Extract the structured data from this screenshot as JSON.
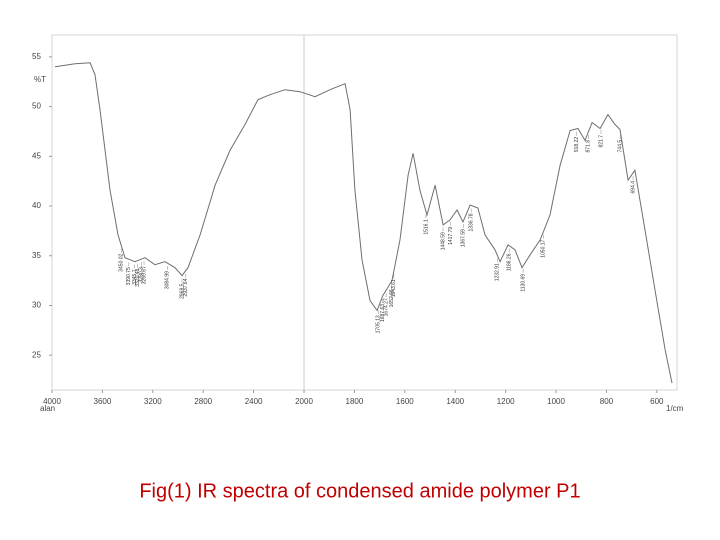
{
  "chart_data": {
    "type": "line",
    "caption": "Fig(1) IR spectra of condensed amide polymer P1",
    "ylabel": "%T",
    "xlabel": "1/cm",
    "x_note": "alan",
    "x_break": 2000,
    "xlim": [
      4000,
      520
    ],
    "ylim": [
      21.5,
      57.2
    ],
    "xticks": [
      4000,
      3600,
      3200,
      2800,
      2400,
      2000,
      1800,
      1600,
      1400,
      1200,
      1000,
      800,
      600
    ],
    "yticks": [
      25,
      30,
      35,
      40,
      45,
      50,
      55
    ],
    "series": [
      {
        "name": "P1",
        "color": "#6e6e6e",
        "x": [
          3976,
          3817,
          3698,
          3659,
          3619,
          3540,
          3476,
          3421,
          3341,
          3262,
          3183,
          3103,
          3024,
          2968,
          2921,
          2825,
          2706,
          2587,
          2468,
          2365,
          2270,
          2151,
          2032,
          1956,
          1897,
          1837,
          1817,
          1798,
          1770,
          1738,
          1710,
          1687,
          1651,
          1619,
          1587,
          1567,
          1540,
          1512,
          1480,
          1448,
          1421,
          1393,
          1369,
          1341,
          1310,
          1282,
          1242,
          1222,
          1190,
          1163,
          1135,
          1103,
          1063,
          1024,
          984,
          944,
          913,
          885,
          857,
          825,
          794,
          766,
          746,
          714,
          687,
          647,
          607,
          567,
          540
        ],
        "values": [
          54.0,
          54.3,
          54.4,
          53.2,
          49.7,
          41.6,
          37.1,
          34.8,
          34.4,
          34.8,
          34.1,
          34.4,
          33.8,
          33.0,
          33.8,
          37.1,
          42.1,
          45.6,
          48.2,
          50.7,
          51.2,
          51.7,
          51.5,
          51.0,
          51.7,
          52.3,
          49.7,
          41.6,
          34.6,
          30.5,
          29.5,
          31.0,
          32.5,
          36.6,
          43.1,
          45.3,
          41.6,
          39.1,
          42.1,
          38.1,
          38.6,
          39.6,
          38.4,
          40.1,
          39.8,
          37.1,
          35.6,
          34.4,
          36.1,
          35.6,
          33.8,
          35.1,
          36.6,
          39.1,
          44.1,
          47.6,
          47.8,
          46.6,
          48.4,
          47.8,
          49.2,
          48.2,
          47.7,
          42.6,
          43.6,
          37.6,
          31.5,
          25.5,
          22.2
        ]
      }
    ],
    "peaks": [
      3450.02,
      3390.75,
      3345.7,
      3320.48,
      3290.3,
      3269.67,
      3084.99,
      2968.5,
      2937.64,
      1705.13,
      1687.63,
      1674.27,
      1652.66,
      1643.61,
      1516.1,
      1448.59,
      1417.79,
      1367.59,
      1336.78,
      1232.91,
      1186.26,
      1130.69,
      1050.17,
      918.22,
      871.8,
      821.7,
      744.5,
      694.4
    ]
  }
}
